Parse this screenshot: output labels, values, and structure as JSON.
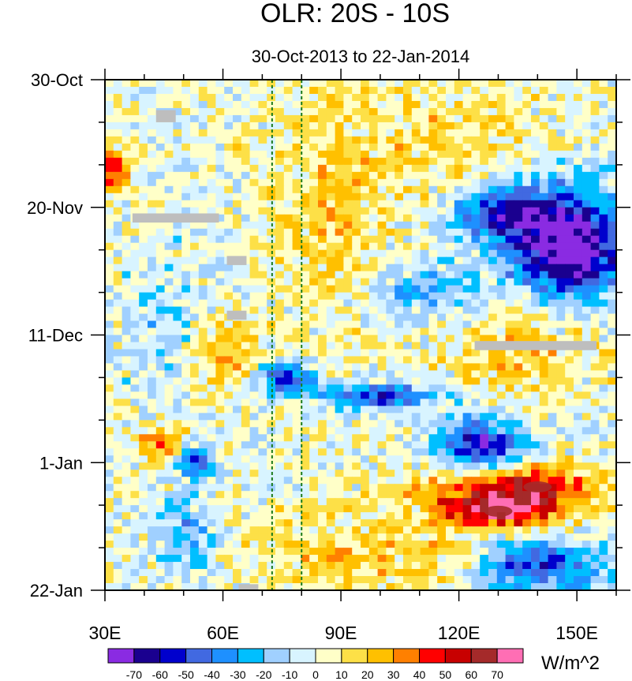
{
  "chart_data": {
    "type": "heatmap",
    "title": "OLR: 20S - 10S",
    "subtitle": "30-Oct-2013 to 22-Jan-2014",
    "x_range": [
      30,
      160
    ],
    "x_ticks": [
      {
        "value": 30,
        "label": "30E"
      },
      {
        "value": 60,
        "label": "60E"
      },
      {
        "value": 90,
        "label": "90E"
      },
      {
        "value": 120,
        "label": "120E"
      },
      {
        "value": 150,
        "label": "150E"
      }
    ],
    "y_range_days": [
      0,
      84
    ],
    "y_ticks": [
      {
        "day": 0,
        "label": "30-Oct"
      },
      {
        "day": 21,
        "label": "20-Nov"
      },
      {
        "day": 42,
        "label": "11-Dec"
      },
      {
        "day": 63,
        "label": "1-Jan"
      },
      {
        "day": 84,
        "label": "22-Jan"
      }
    ],
    "reference_lines_lon": [
      72.5,
      80
    ],
    "colorbar": {
      "units": "W/m^2",
      "levels": [
        -70,
        -60,
        -50,
        -40,
        -30,
        -20,
        -10,
        0,
        10,
        20,
        30,
        40,
        50,
        60,
        70
      ],
      "level_labels": [
        "-70",
        "-60",
        "-50",
        "-40",
        "-30",
        "-20",
        "-10",
        "0",
        "10",
        "20",
        "30",
        "40",
        "50",
        "60",
        "70"
      ],
      "colors": [
        "#8a2be2",
        "#1a008f",
        "#0000cd",
        "#4169e1",
        "#1e90ff",
        "#00bfff",
        "#a0d0ff",
        "#d8f4ff",
        "#ffffc8",
        "#fde047",
        "#ffc000",
        "#ff8000",
        "#ff0000",
        "#c80000",
        "#a52a2a",
        "#ff6eb4"
      ]
    },
    "features": [
      {
        "name": "convective band east",
        "lon_range": [
          115,
          160
        ],
        "day_range": [
          15,
          40
        ],
        "value": -55
      },
      {
        "name": "suppressed band",
        "lon_range": [
          85,
          130
        ],
        "day_range": [
          60,
          80
        ],
        "value": 30
      },
      {
        "name": "strong positive anomaly",
        "lon": 140,
        "day": 67,
        "value": 60
      },
      {
        "name": "strong positive anomaly",
        "lon": 130,
        "day": 71,
        "value": 65
      },
      {
        "name": "convective bursts",
        "lon_range": [
          70,
          125
        ],
        "day_range": [
          45,
          60
        ],
        "value": -60
      },
      {
        "name": "convective cluster",
        "lon_range": [
          125,
          155
        ],
        "day_range": [
          74,
          83
        ],
        "value": -65
      }
    ],
    "missing_data_boxes": [
      {
        "lon_range": [
          37,
          59
        ],
        "day_range": [
          22,
          23.5
        ]
      },
      {
        "lon_range": [
          124,
          155
        ],
        "day_range": [
          43,
          44.5
        ]
      },
      {
        "lon_range": [
          61,
          66
        ],
        "day_range": [
          29,
          30.5
        ]
      },
      {
        "lon_range": [
          61,
          66
        ],
        "day_range": [
          38,
          39.5
        ]
      },
      {
        "lon_range": [
          43,
          48
        ],
        "day_range": [
          5,
          7
        ]
      },
      {
        "lon_range": [
          64,
          69
        ],
        "day_range": [
          83,
          84
        ]
      }
    ]
  }
}
